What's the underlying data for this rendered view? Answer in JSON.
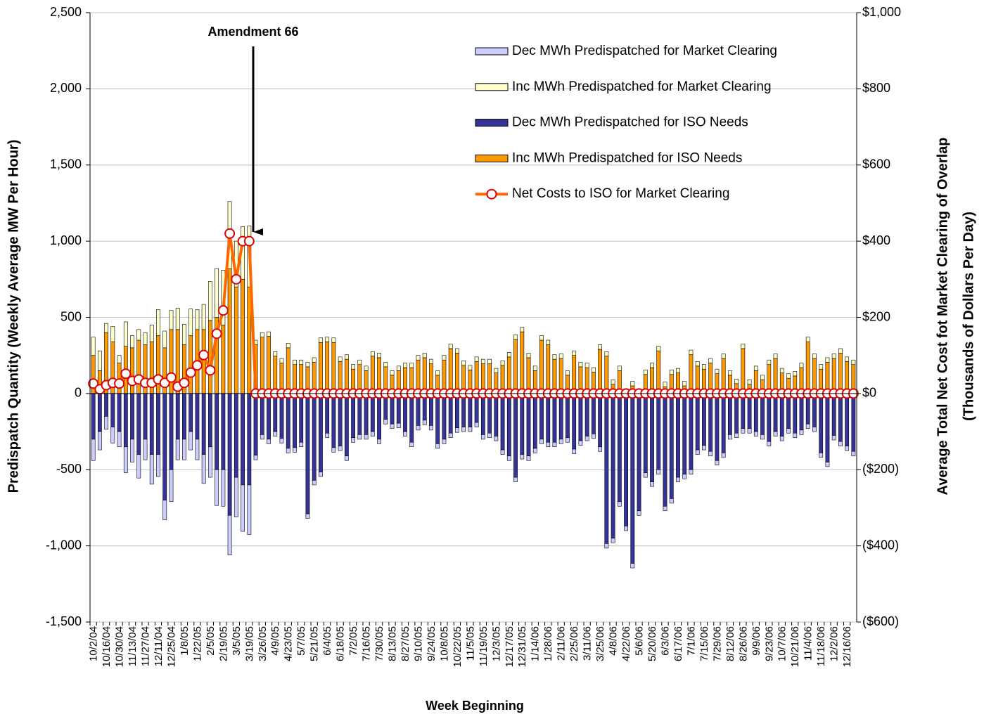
{
  "chart_data": {
    "type": "bar",
    "x_label": "Week Beginning",
    "y_label": "Predispatch Quantity (Weekly Average MW Per Hour)",
    "y2_label": [
      "Average Total Net Cost fot Market Clearing of Overlap",
      "(Thousands of Dollars Per Day)"
    ],
    "annotation": "Amendment 66",
    "stacked": true,
    "grid": true,
    "legend": "top-right",
    "categories": [
      "10/2/04",
      null,
      "10/16/04",
      null,
      "10/30/04",
      null,
      "11/13/04",
      null,
      "11/27/04",
      null,
      "12/11/04",
      null,
      "12/25/04",
      null,
      "1/8/05",
      null,
      "1/22/05",
      null,
      "2/5/05",
      null,
      "2/19/05",
      null,
      "3/5/05",
      null,
      "3/19/05",
      null,
      "3/26/05",
      null,
      "4/9/05",
      null,
      "4/23/05",
      null,
      "5/7/05",
      null,
      "5/21/05",
      null,
      "6/4/05",
      null,
      "6/18/05",
      null,
      "7/2/05",
      null,
      "7/16/05",
      null,
      "7/30/05",
      null,
      "8/13/05",
      null,
      "8/27/05",
      null,
      "9/10/05",
      null,
      "9/24/05",
      null,
      "10/8/05",
      null,
      "10/22/05",
      null,
      "11/5/05",
      null,
      "11/19/05",
      null,
      "12/3/05",
      null,
      "12/17/05",
      null,
      "12/31/05",
      null,
      "1/14/06",
      null,
      "1/28/06",
      null,
      "2/11/06",
      null,
      "2/25/06",
      null,
      "3/11/06",
      null,
      "3/25/06",
      null,
      "4/8/06",
      null,
      "4/22/06",
      null,
      "5/6/06",
      null,
      "5/20/06",
      null,
      "6/3/06",
      null,
      "6/17/06",
      null,
      "7/1/06",
      null,
      "7/15/06",
      null,
      "7/29/06",
      null,
      "8/12/06",
      null,
      "8/26/06",
      null,
      "9/9/06",
      null,
      "9/23/06",
      null,
      "10/7/06",
      null,
      "10/21/06",
      null,
      "11/4/06",
      null,
      "11/18/06",
      null,
      "12/2/06",
      null,
      "12/16/06",
      null
    ],
    "series": [
      {
        "name": "Dec MWh Predispatched for Market Clearing",
        "color": "#ccccff",
        "values": [
          -140,
          -120,
          -85,
          -105,
          -100,
          -170,
          -150,
          -155,
          -135,
          -195,
          -145,
          -130,
          -210,
          -135,
          -135,
          -120,
          -135,
          -190,
          -200,
          -235,
          -240,
          -260,
          -260,
          -305,
          -325,
          -30,
          -30,
          -30,
          -30,
          -30,
          -30,
          -30,
          -30,
          -30,
          -30,
          -30,
          -30,
          -30,
          -30,
          -30,
          -30,
          -30,
          -30,
          -30,
          -30,
          -30,
          -30,
          -30,
          -30,
          -30,
          -30,
          -30,
          -30,
          -30,
          -30,
          -30,
          -30,
          -30,
          -30,
          -30,
          -30,
          -30,
          -30,
          -30,
          -30,
          -30,
          -30,
          -30,
          -30,
          -30,
          -30,
          -30,
          -30,
          -30,
          -30,
          -30,
          -30,
          -30,
          -30,
          -30,
          -30,
          -30,
          -30,
          -30,
          -30,
          -30,
          -30,
          -30,
          -30,
          -30,
          -30,
          -30,
          -30,
          -30,
          -30,
          -30,
          -30,
          -30,
          -30,
          -30,
          -30,
          -30,
          -30,
          -30,
          -30,
          -30,
          -30,
          -30,
          -30,
          -30,
          -30,
          -30,
          -30,
          -30,
          -30,
          -30,
          -30,
          -30
        ]
      },
      {
        "name": "Inc MWh Predispatched for Market Clearing",
        "color": "#ffffcc",
        "values": [
          120,
          130,
          60,
          100,
          50,
          160,
          80,
          70,
          80,
          110,
          170,
          110,
          125,
          140,
          135,
          175,
          130,
          165,
          255,
          320,
          360,
          440,
          300,
          345,
          400,
          30,
          30,
          30,
          30,
          30,
          30,
          30,
          30,
          30,
          30,
          30,
          30,
          30,
          30,
          30,
          30,
          30,
          30,
          30,
          30,
          30,
          30,
          30,
          30,
          30,
          30,
          30,
          30,
          30,
          30,
          30,
          30,
          30,
          30,
          30,
          30,
          30,
          30,
          30,
          30,
          30,
          30,
          30,
          30,
          30,
          30,
          30,
          30,
          30,
          30,
          30,
          30,
          30,
          30,
          30,
          30,
          30,
          10,
          30,
          10,
          30,
          30,
          30,
          30,
          30,
          30,
          30,
          30,
          30,
          30,
          30,
          30,
          30,
          30,
          30,
          30,
          30,
          30,
          30,
          30,
          30,
          30,
          30,
          30,
          30,
          30,
          30,
          30,
          30,
          30,
          30,
          30,
          30
        ]
      },
      {
        "name": "Dec MWh Predispatched for ISO Needs",
        "color": "#333399",
        "values": [
          -300,
          -250,
          -150,
          -220,
          -250,
          -350,
          -300,
          -400,
          -300,
          -400,
          -400,
          -700,
          -500,
          -300,
          -300,
          -250,
          -300,
          -400,
          -350,
          -500,
          -500,
          -800,
          -550,
          -600,
          -600,
          -405,
          -270,
          -300,
          -250,
          -295,
          -360,
          -355,
          -320,
          -790,
          -570,
          -515,
          -260,
          -355,
          -345,
          -410,
          -290,
          -270,
          -270,
          -250,
          -300,
          -170,
          -200,
          -195,
          -250,
          -320,
          -210,
          -175,
          -210,
          -330,
          -300,
          -260,
          -225,
          -220,
          -220,
          -190,
          -270,
          -260,
          -280,
          -370,
          -410,
          -550,
          -400,
          -410,
          -360,
          -300,
          -320,
          -320,
          -300,
          -290,
          -365,
          -310,
          -280,
          -265,
          -350,
          -985,
          -950,
          -710,
          -870,
          -1115,
          -770,
          -520,
          -580,
          -500,
          -740,
          -690,
          -550,
          -530,
          -500,
          -370,
          -340,
          -380,
          -440,
          -390,
          -270,
          -260,
          -230,
          -230,
          -250,
          -270,
          -315,
          -250,
          -280,
          -230,
          -260,
          -240,
          -200,
          -220,
          -390,
          -450,
          -275,
          -315,
          -345,
          -380
        ]
      },
      {
        "name": "Inc MWh Predispatched for ISO Needs",
        "color": "#ff9900",
        "values": [
          250,
          150,
          400,
          340,
          200,
          310,
          300,
          350,
          320,
          340,
          380,
          300,
          420,
          420,
          320,
          380,
          420,
          420,
          480,
          500,
          450,
          820,
          700,
          750,
          700,
          320,
          370,
          375,
          245,
          200,
          300,
          190,
          190,
          175,
          205,
          335,
          340,
          335,
          210,
          225,
          160,
          190,
          150,
          245,
          235,
          175,
          120,
          150,
          170,
          170,
          220,
          235,
          195,
          120,
          220,
          295,
          265,
          185,
          155,
          210,
          195,
          195,
          135,
          185,
          240,
          355,
          405,
          235,
          150,
          350,
          320,
          225,
          230,
          120,
          250,
          175,
          170,
          140,
          290,
          245,
          60,
          150,
          10,
          50,
          5,
          125,
          170,
          280,
          45,
          125,
          135,
          50,
          255,
          180,
          160,
          200,
          130,
          230,
          120,
          65,
          295,
          60,
          150,
          90,
          190,
          230,
          135,
          100,
          115,
          170,
          340,
          230,
          160,
          205,
          230,
          265,
          210,
          190
        ]
      },
      {
        "name": "Net Costs to ISO for Market Clearing",
        "color": "#ff6600",
        "type": "line",
        "axis": "y2",
        "values": [
          26,
          11,
          22,
          28,
          26,
          52,
          33,
          37,
          28,
          28,
          37,
          28,
          42,
          18,
          28,
          55,
          74,
          101,
          61,
          157,
          218,
          420,
          300,
          400,
          400,
          0,
          0,
          0,
          0,
          0,
          0,
          0,
          0,
          0,
          0,
          0,
          0,
          0,
          0,
          0,
          0,
          0,
          0,
          0,
          0,
          0,
          0,
          0,
          0,
          0,
          0,
          0,
          0,
          0,
          0,
          0,
          0,
          0,
          0,
          0,
          0,
          0,
          0,
          0,
          0,
          0,
          0,
          0,
          0,
          0,
          0,
          0,
          0,
          0,
          0,
          0,
          0,
          0,
          0,
          0,
          0,
          0,
          0,
          0,
          0,
          0,
          0,
          0,
          0,
          0,
          0,
          0,
          0,
          0,
          0,
          0,
          0,
          0,
          0,
          0,
          0,
          0,
          0,
          0,
          0,
          0,
          0,
          0,
          0,
          0,
          0,
          0,
          0,
          0,
          0,
          0,
          0,
          0
        ]
      }
    ],
    "ylim": [
      -1500,
      2500
    ],
    "yticks": [
      {
        "value": -1500,
        "label": "-1,500"
      },
      {
        "value": -1000,
        "label": "-1,000"
      },
      -500,
      0,
      500,
      {
        "value": 1000,
        "label": "1,000"
      },
      {
        "value": 1500,
        "label": "1,500"
      },
      {
        "value": 2000,
        "label": "2,000"
      },
      {
        "value": 2500,
        "label": "2,500"
      }
    ],
    "y2lim": [
      -600,
      1000
    ],
    "y2ticks": [
      {
        "value": -600,
        "label": "($600)"
      },
      {
        "value": -400,
        "label": "($400)"
      },
      {
        "value": -200,
        "label": "($200)"
      },
      {
        "value": 0,
        "label": "$0"
      },
      {
        "value": 200,
        "label": "$200"
      },
      {
        "value": 400,
        "label": "$400"
      },
      {
        "value": 600,
        "label": "$600"
      },
      {
        "value": 800,
        "label": "$800"
      },
      {
        "value": 1000,
        "label": "$1,000"
      }
    ]
  }
}
